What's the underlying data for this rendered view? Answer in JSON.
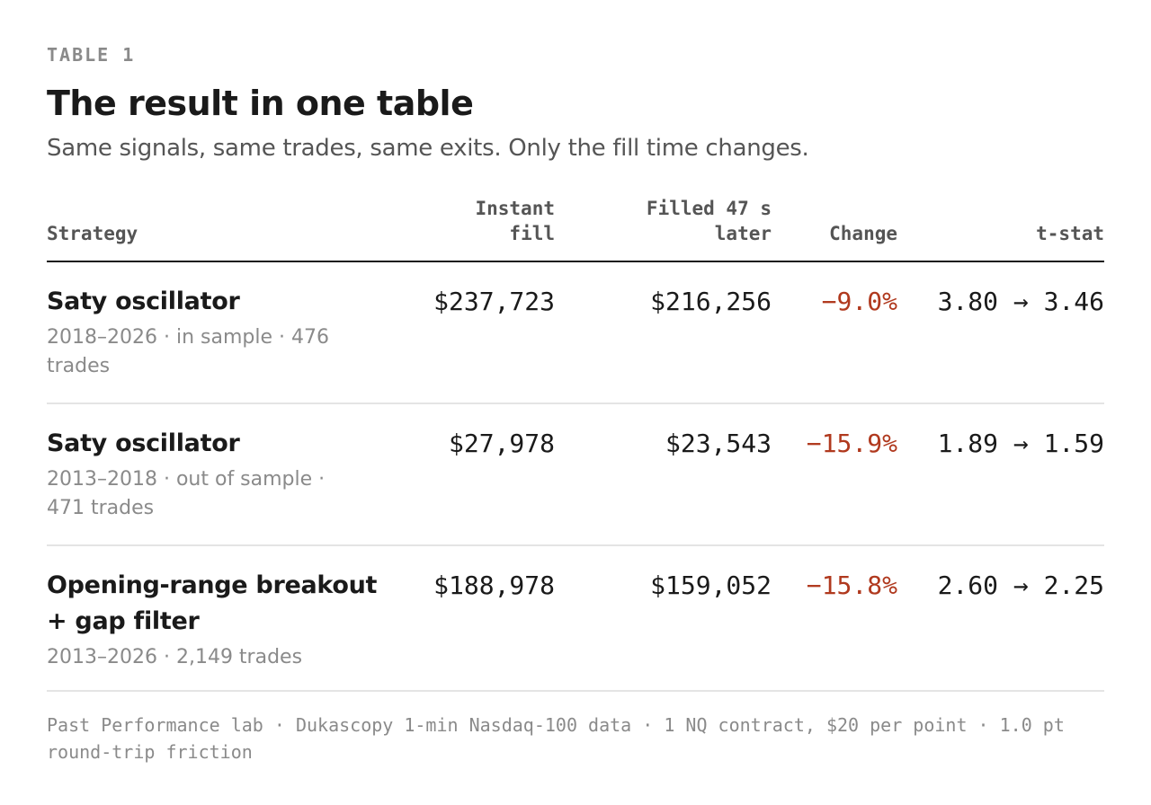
{
  "eyebrow": "TABLE 1",
  "title": "The result in one table",
  "subtitle": "Same signals, same trades, same exits. Only the fill time changes.",
  "table": {
    "headers": {
      "strategy": "Strategy",
      "instant_line1": "Instant",
      "instant_line2": "fill",
      "filled_line1": "Filled 47 s",
      "filled_line2": "later",
      "change": "Change",
      "tstat": "t-stat"
    },
    "rows": [
      {
        "strategy": "Saty oscillator",
        "meta": "2018–2026 · in sample · 476 trades",
        "instant": "$237,723",
        "filled": "$216,256",
        "change": "−9.0%",
        "tstat": "3.80 → 3.46"
      },
      {
        "strategy": "Saty oscillator",
        "meta": "2013–2018 · out of sample · 471 trades",
        "instant": "$27,978",
        "filled": "$23,543",
        "change": "−15.9%",
        "tstat": "1.89 → 1.59"
      },
      {
        "strategy": "Opening-range breakout + gap filter",
        "meta": "2013–2026 · 2,149 trades",
        "instant": "$188,978",
        "filled": "$159,052",
        "change": "−15.8%",
        "tstat": "2.60 → 2.25"
      }
    ]
  },
  "footnote": "Past Performance lab · Dukascopy 1-min Nasdaq-100 data · 1 NQ contract, $20 per point · 1.0 pt round-trip friction",
  "colors": {
    "negative": "#b0391e",
    "muted": "#8a8a8a",
    "text": "#1a1a1a"
  }
}
